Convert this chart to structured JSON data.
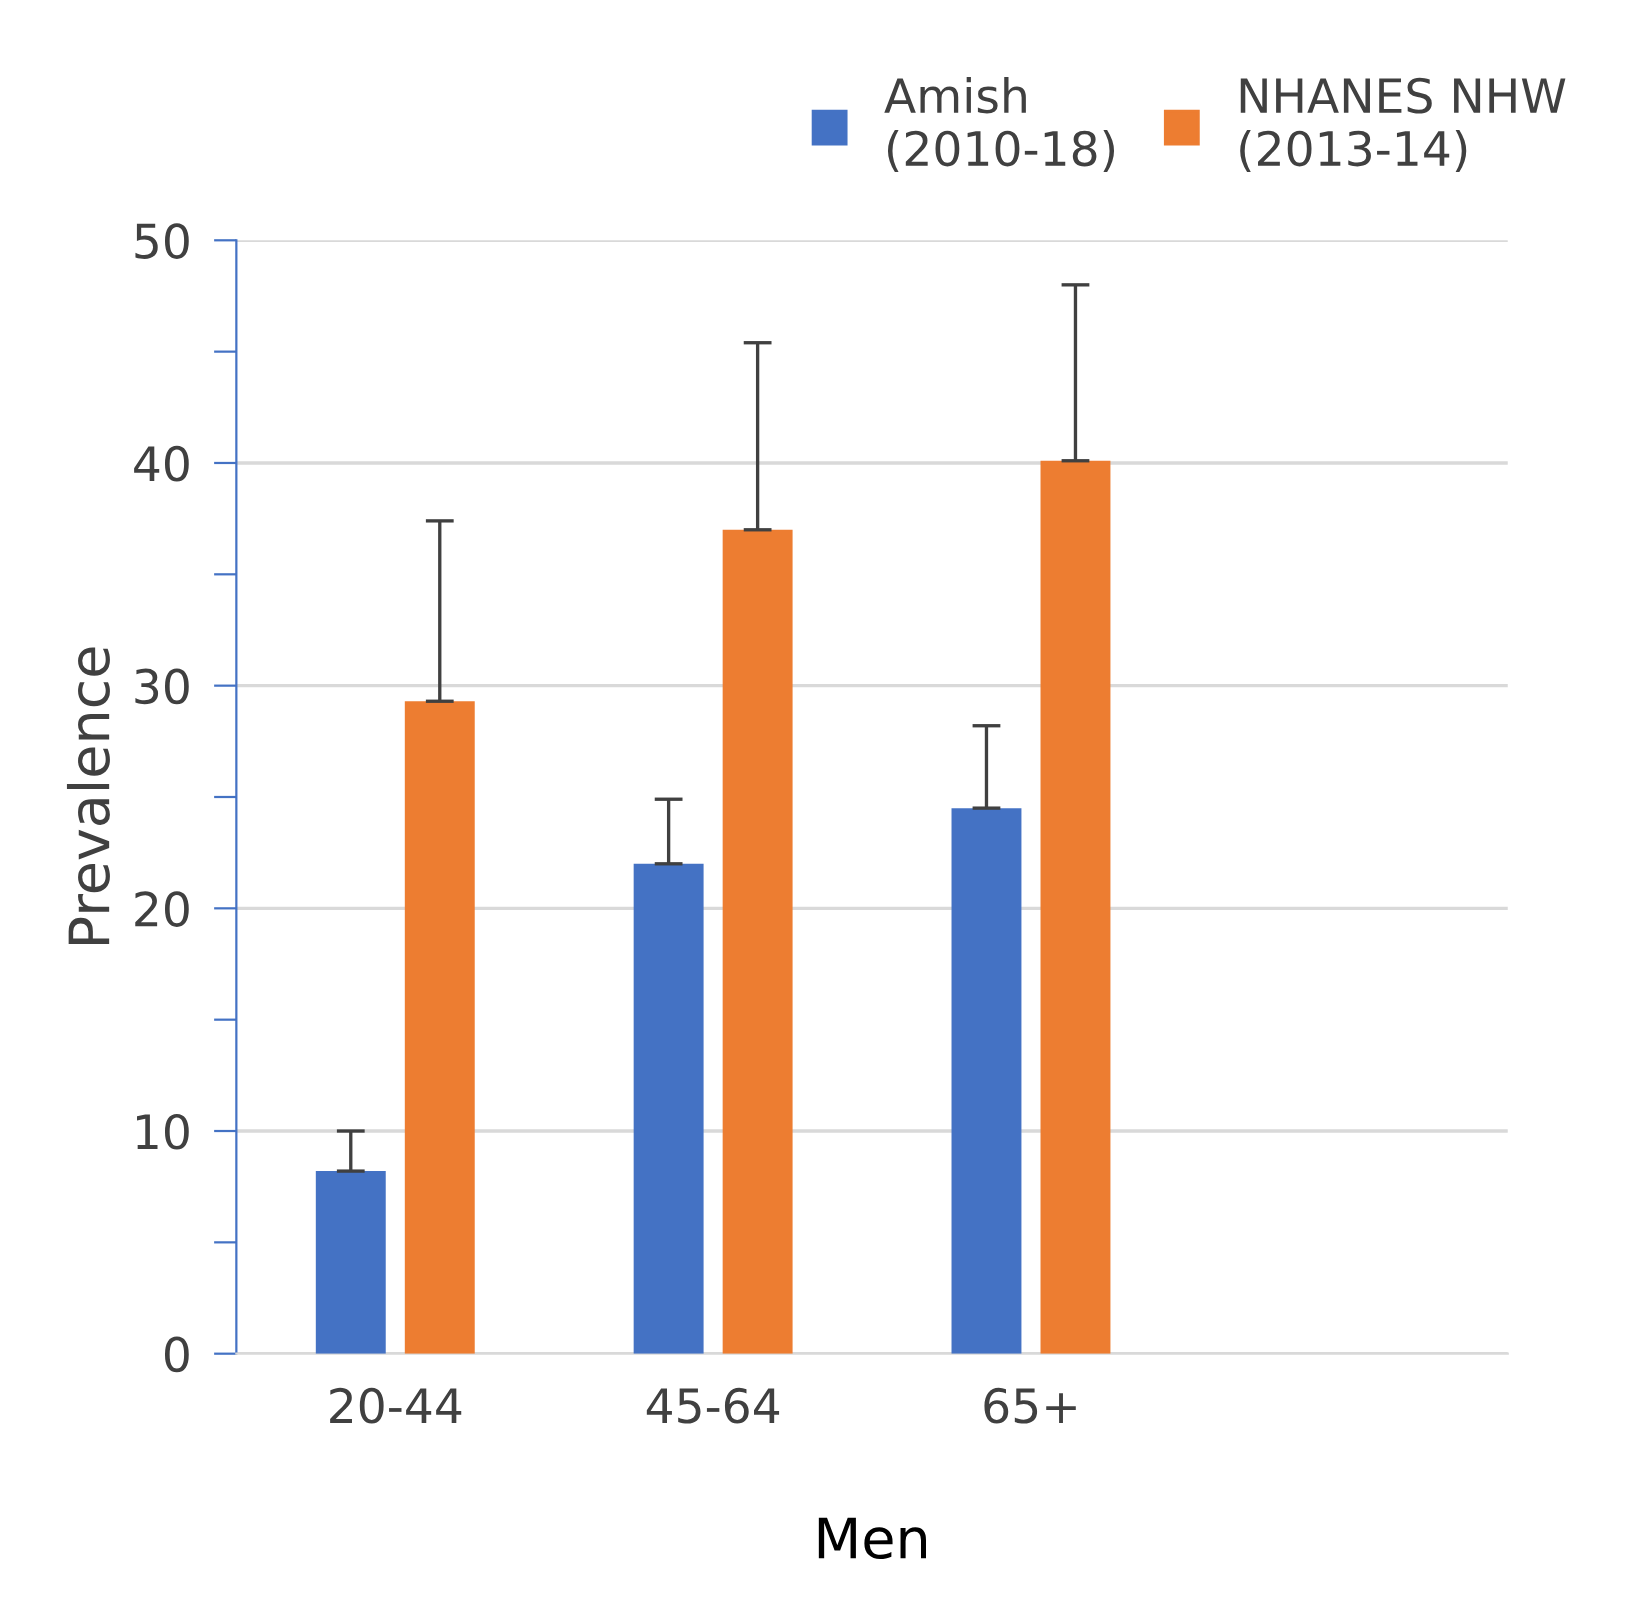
{
  "chart_data": {
    "type": "bar",
    "xlabel": "Men",
    "ylabel": "Prevalence",
    "categories": [
      "20-44",
      "45-64",
      "65+",
      null
    ],
    "series": [
      {
        "name": "Amish\n(2010-18)",
        "color": "#4472c4",
        "values": [
          8.2,
          22.0,
          24.5,
          null
        ],
        "errors": [
          [
            8.2,
            10.0
          ],
          [
            22.0,
            24.9
          ],
          [
            24.5,
            28.2
          ],
          null
        ]
      },
      {
        "name": "NHANES NHW\n(2013-14)",
        "color": "#ed7d31",
        "values": [
          29.3,
          37.0,
          40.1,
          null
        ],
        "errors": [
          [
            29.3,
            37.4
          ],
          [
            37.0,
            45.4
          ],
          [
            40.1,
            48.0
          ],
          null
        ]
      }
    ],
    "ylim": [
      0,
      50
    ],
    "yticks": [
      0,
      {
        "value": 5,
        "label": null
      },
      10,
      {
        "value": 15,
        "label": null
      },
      20,
      {
        "value": 25,
        "label": null
      },
      30,
      {
        "value": 35,
        "label": null
      },
      40,
      {
        "value": 45,
        "label": null
      },
      50
    ],
    "grid": "y",
    "legend": "top right"
  }
}
